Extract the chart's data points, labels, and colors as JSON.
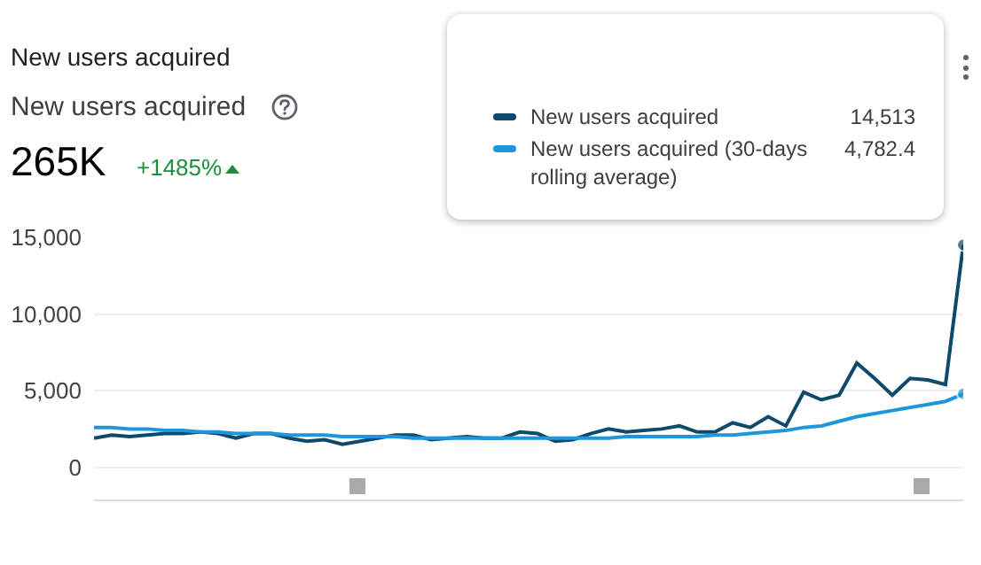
{
  "chart_data": {
    "type": "line",
    "title": "New users acquired",
    "subtitle": "New users acquired",
    "annotations": [
      "265K",
      "+1485%",
      "14,513",
      "4,782.4"
    ],
    "categories": [
      null,
      null,
      null,
      null,
      null,
      null,
      null,
      null,
      null,
      null,
      null,
      null,
      null,
      null,
      null,
      null,
      null,
      null,
      null,
      null,
      null,
      null,
      null,
      null,
      null,
      null,
      null,
      null,
      null,
      null,
      null,
      null,
      null,
      null,
      null,
      null,
      null,
      null,
      null,
      null,
      null,
      null,
      null,
      null,
      null,
      null,
      null,
      null,
      null,
      null
    ],
    "ylim": [
      -2100,
      15000
    ],
    "yticks": [
      {
        "value": 0,
        "label": "0"
      },
      {
        "value": 5000,
        "label": "5,000"
      },
      {
        "value": 10000,
        "label": "10,000"
      },
      {
        "value": 15000,
        "label": "15,000"
      }
    ],
    "grid": "y",
    "tick_labels": "y",
    "legend": "top right",
    "marker": "none",
    "series": [
      {
        "name": "New users acquired",
        "color": "#0d4a6b",
        "values": [
          1900,
          2100,
          2000,
          2100,
          2200,
          2200,
          2300,
          2200,
          1900,
          2200,
          2200,
          1900,
          1700,
          1800,
          1500,
          1700,
          1900,
          2100,
          2100,
          1800,
          1900,
          2000,
          1900,
          1900,
          2300,
          2200,
          1700,
          1800,
          2200,
          2500,
          2300,
          2400,
          2500,
          2700,
          2300,
          2300,
          2900,
          2600,
          3300,
          2700,
          4900,
          4400,
          4700,
          6800,
          5800,
          4700,
          5800,
          5700,
          5400,
          14513
        ]
      },
      {
        "name": "New users acquired (30-days rolling average)",
        "color": "#1e96dc",
        "values": [
          2600,
          2600,
          2500,
          2500,
          2400,
          2400,
          2300,
          2300,
          2200,
          2200,
          2200,
          2100,
          2100,
          2100,
          2000,
          2000,
          2000,
          2000,
          1900,
          1900,
          1900,
          1900,
          1900,
          1900,
          1900,
          1900,
          1900,
          1900,
          1900,
          1900,
          2000,
          2000,
          2000,
          2000,
          2000,
          2100,
          2100,
          2200,
          2300,
          2400,
          2600,
          2700,
          3000,
          3300,
          3500,
          3700,
          3900,
          4100,
          4300,
          4782.4
        ]
      }
    ]
  }
}
